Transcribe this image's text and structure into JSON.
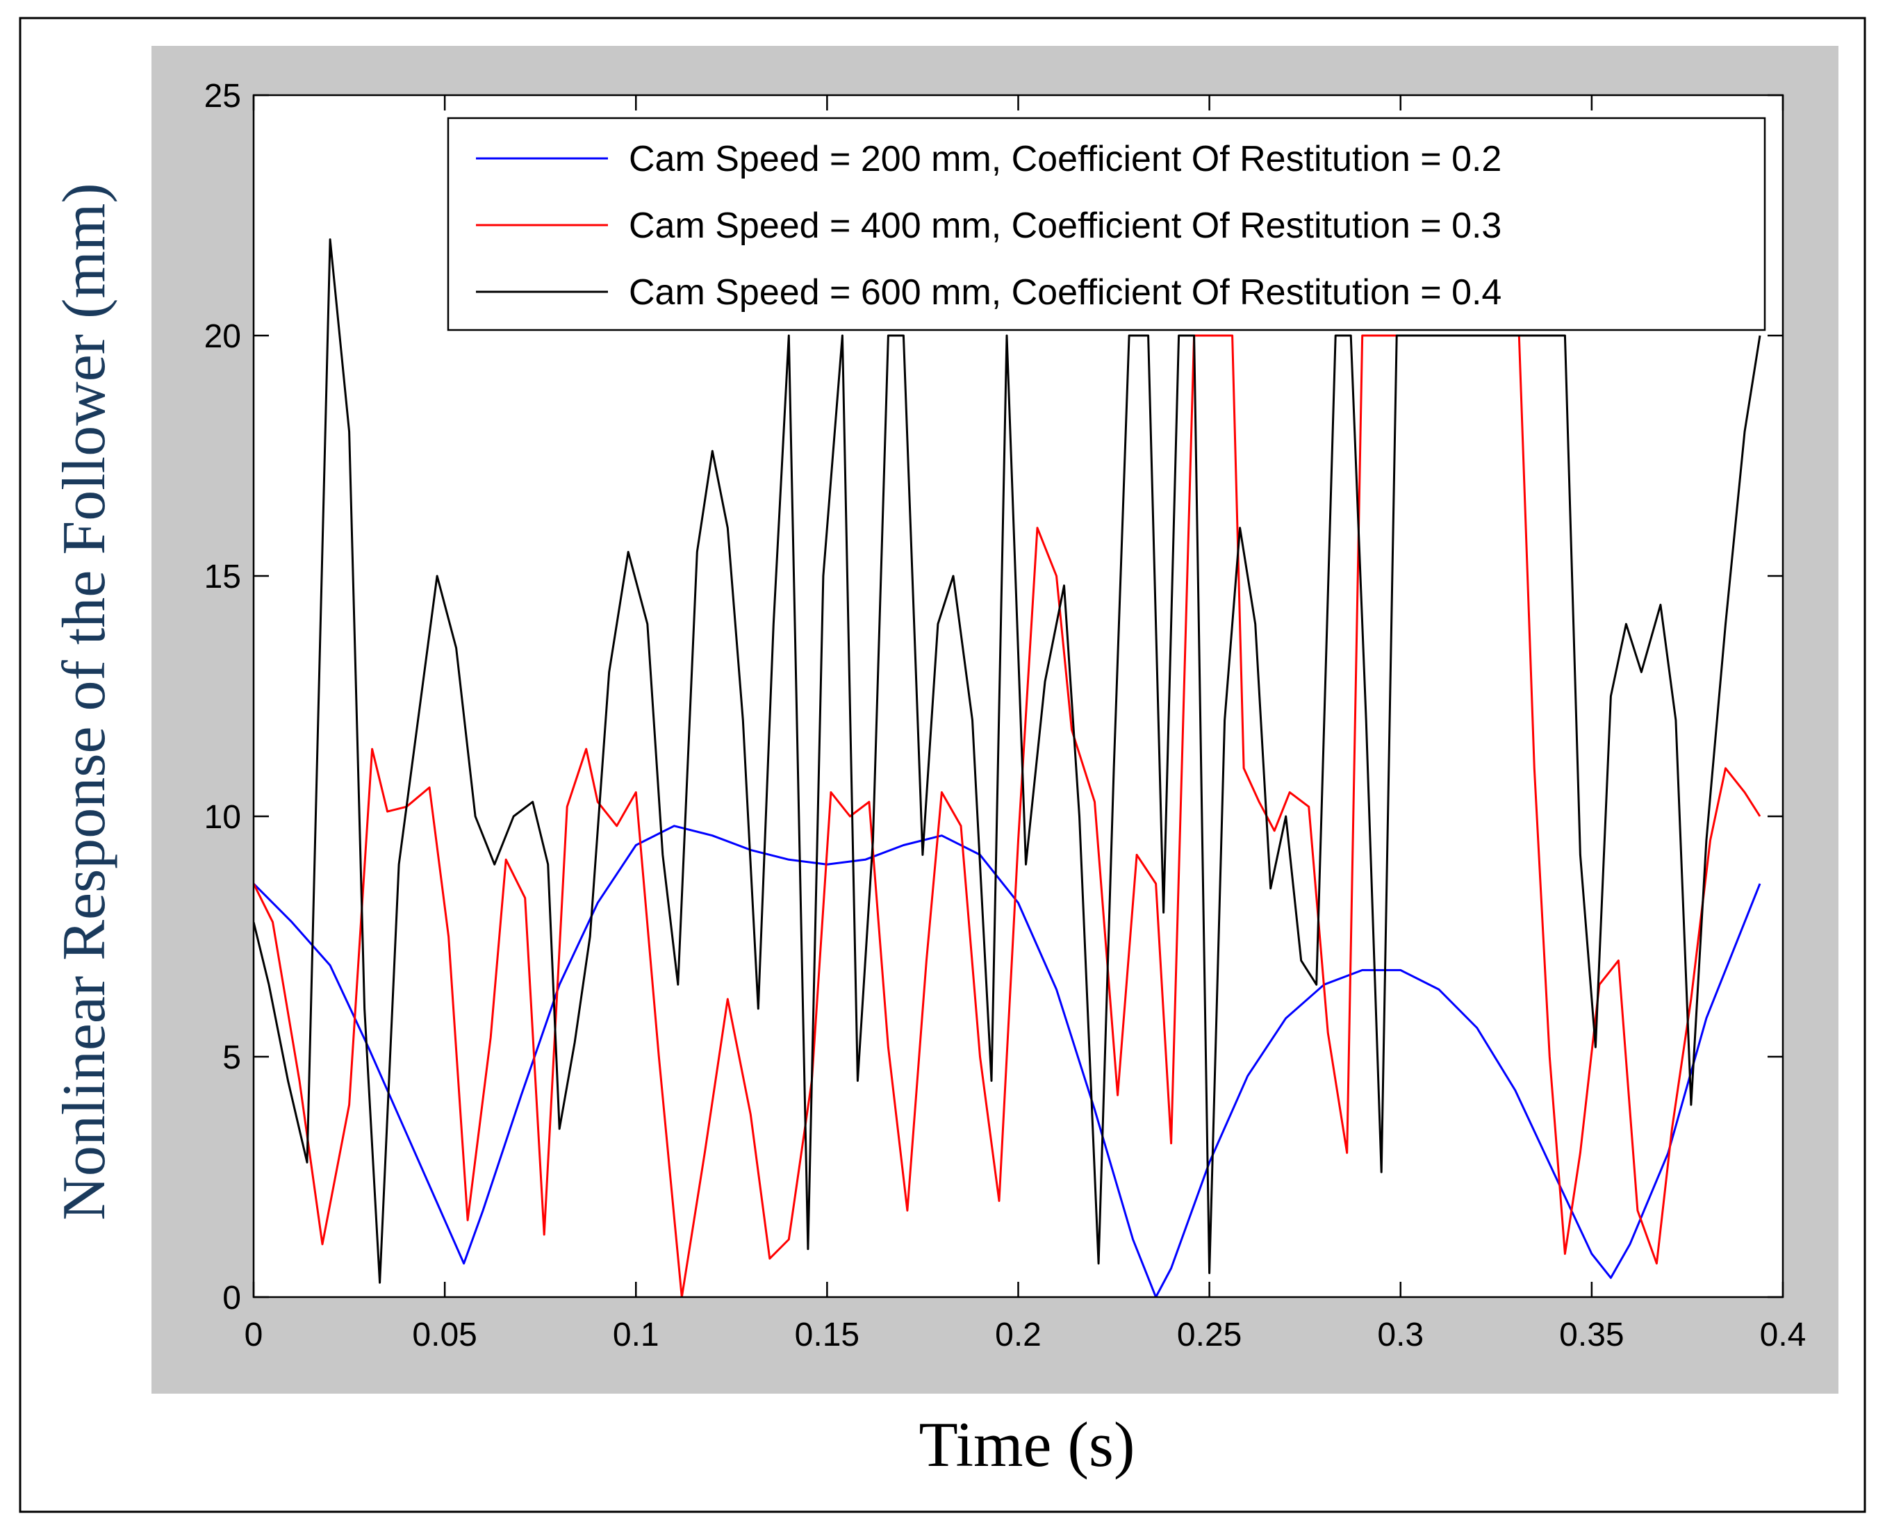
{
  "chart_data": {
    "type": "line",
    "title": "",
    "xlabel": "Time (s)",
    "ylabel": "Nonlinear Response of the Follower (mm)",
    "xlim": [
      0,
      0.4
    ],
    "ylim": [
      0,
      25
    ],
    "xticks": [
      0,
      0.05,
      0.1,
      0.15,
      0.2,
      0.25,
      0.3,
      0.35,
      0.4
    ],
    "xtick_labels": [
      "0",
      "0.05",
      "0.1",
      "0.15",
      "0.2",
      "0.25",
      "0.3",
      "0.35",
      "0.4"
    ],
    "yticks": [
      0,
      5,
      10,
      15,
      20,
      25
    ],
    "ytick_labels": [
      "0",
      "5",
      "10",
      "15",
      "20",
      "25"
    ],
    "grid": false,
    "legend_position": "top-right",
    "series": [
      {
        "name": "Cam Speed = 200 mm, Coefficient Of Restitution = 0.2",
        "color": "#0000ff",
        "x": [
          0,
          0.01,
          0.02,
          0.03,
          0.04,
          0.05,
          0.055,
          0.06,
          0.07,
          0.08,
          0.09,
          0.1,
          0.11,
          0.12,
          0.13,
          0.14,
          0.15,
          0.16,
          0.17,
          0.18,
          0.19,
          0.2,
          0.21,
          0.22,
          0.23,
          0.236,
          0.24,
          0.25,
          0.26,
          0.27,
          0.28,
          0.29,
          0.3,
          0.31,
          0.32,
          0.33,
          0.34,
          0.35,
          0.355,
          0.36,
          0.37,
          0.38,
          0.394
        ],
        "y": [
          8.6,
          7.8,
          6.9,
          5.2,
          3.4,
          1.6,
          0.7,
          1.8,
          4.2,
          6.5,
          8.2,
          9.4,
          9.8,
          9.6,
          9.3,
          9.1,
          9.0,
          9.1,
          9.4,
          9.6,
          9.2,
          8.2,
          6.4,
          3.9,
          1.2,
          0.0,
          0.6,
          2.8,
          4.6,
          5.8,
          6.5,
          6.8,
          6.8,
          6.4,
          5.6,
          4.3,
          2.6,
          0.9,
          0.4,
          1.1,
          3.0,
          5.8,
          8.6
        ]
      },
      {
        "name": "Cam Speed = 400 mm, Coefficient Of Restitution = 0.3",
        "color": "#ff0000",
        "x": [
          0,
          0.005,
          0.012,
          0.018,
          0.025,
          0.031,
          0.035,
          0.04,
          0.046,
          0.051,
          0.056,
          0.062,
          0.066,
          0.071,
          0.076,
          0.082,
          0.087,
          0.09,
          0.095,
          0.1,
          0.106,
          0.112,
          0.118,
          0.124,
          0.13,
          0.135,
          0.14,
          0.146,
          0.151,
          0.156,
          0.161,
          0.166,
          0.171,
          0.176,
          0.18,
          0.185,
          0.19,
          0.195,
          0.2,
          0.205,
          0.21,
          0.214,
          0.22,
          0.226,
          0.231,
          0.236,
          0.24,
          0.246,
          0.251,
          0.256,
          0.259,
          0.263,
          0.267,
          0.271,
          0.276,
          0.281,
          0.286,
          0.29,
          0.294,
          0.298,
          0.302,
          0.306,
          0.31,
          0.314,
          0.318,
          0.322,
          0.327,
          0.331,
          0.335,
          0.339,
          0.343,
          0.347,
          0.352,
          0.357,
          0.362,
          0.367,
          0.371,
          0.376,
          0.381,
          0.385,
          0.39,
          0.394
        ],
        "y": [
          8.6,
          7.8,
          4.5,
          1.1,
          4.0,
          11.4,
          10.1,
          10.2,
          10.6,
          7.5,
          1.6,
          5.4,
          9.1,
          8.3,
          1.3,
          10.2,
          11.4,
          10.3,
          9.8,
          10.5,
          5.0,
          0.0,
          3.0,
          6.2,
          3.8,
          0.8,
          1.2,
          4.5,
          10.5,
          10.0,
          10.3,
          5.2,
          1.8,
          7.0,
          10.5,
          9.8,
          5.0,
          2.0,
          9.5,
          16.0,
          15.0,
          11.8,
          10.3,
          4.2,
          9.2,
          8.6,
          3.2,
          20.0,
          20.0,
          20.0,
          11.0,
          10.3,
          9.7,
          10.5,
          10.2,
          5.5,
          3.0,
          20.0,
          20.0,
          20.0,
          20.0,
          20.0,
          20.0,
          20.0,
          20.0,
          20.0,
          20.0,
          20.0,
          11.0,
          5.0,
          0.9,
          3.0,
          6.5,
          7.0,
          1.8,
          0.7,
          3.5,
          6.2,
          9.5,
          11.0,
          10.5,
          10.0
        ]
      },
      {
        "name": "Cam Speed = 600 mm, Coefficient Of Restitution = 0.4",
        "color": "#000000",
        "x": [
          0,
          0.004,
          0.009,
          0.014,
          0.02,
          0.025,
          0.029,
          0.033,
          0.038,
          0.043,
          0.048,
          0.053,
          0.058,
          0.063,
          0.068,
          0.073,
          0.077,
          0.08,
          0.084,
          0.088,
          0.093,
          0.098,
          0.103,
          0.107,
          0.111,
          0.116,
          0.12,
          0.124,
          0.128,
          0.132,
          0.136,
          0.14,
          0.145,
          0.149,
          0.154,
          0.158,
          0.162,
          0.166,
          0.17,
          0.175,
          0.179,
          0.183,
          0.188,
          0.193,
          0.197,
          0.202,
          0.207,
          0.212,
          0.216,
          0.221,
          0.225,
          0.229,
          0.234,
          0.238,
          0.242,
          0.246,
          0.25,
          0.254,
          0.258,
          0.262,
          0.266,
          0.27,
          0.274,
          0.278,
          0.283,
          0.287,
          0.291,
          0.295,
          0.299,
          0.303,
          0.307,
          0.311,
          0.315,
          0.319,
          0.323,
          0.327,
          0.331,
          0.335,
          0.339,
          0.343,
          0.347,
          0.351,
          0.355,
          0.359,
          0.363,
          0.368,
          0.372,
          0.376,
          0.38,
          0.385,
          0.39,
          0.394
        ],
        "y": [
          7.8,
          6.5,
          4.5,
          2.8,
          22.0,
          18.0,
          6.0,
          0.3,
          9.0,
          12.0,
          15.0,
          13.5,
          10.0,
          9.0,
          10.0,
          10.3,
          9.0,
          3.5,
          5.3,
          7.5,
          13.0,
          15.5,
          14.0,
          9.2,
          6.5,
          15.5,
          17.6,
          16.0,
          12.0,
          6.0,
          14.0,
          20.0,
          1.0,
          15.0,
          20.0,
          4.5,
          9.5,
          20.0,
          20.0,
          9.2,
          14.0,
          15.0,
          12.0,
          4.5,
          20.0,
          9.0,
          12.8,
          14.8,
          10.0,
          0.7,
          11.0,
          20.0,
          20.0,
          8.0,
          20.0,
          20.0,
          0.5,
          12.0,
          16.0,
          14.0,
          8.5,
          10.0,
          7.0,
          6.5,
          20.0,
          20.0,
          12.0,
          2.6,
          20.0,
          20.0,
          20.0,
          20.0,
          20.0,
          20.0,
          20.0,
          20.0,
          20.0,
          20.0,
          20.0,
          20.0,
          9.2,
          5.2,
          12.5,
          14.0,
          13.0,
          14.4,
          12.0,
          4.0,
          9.5,
          14.0,
          18.0,
          20.0
        ]
      }
    ]
  }
}
